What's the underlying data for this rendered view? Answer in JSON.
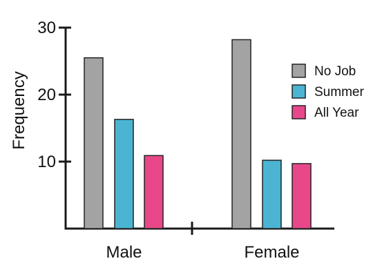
{
  "chart_data": {
    "type": "bar",
    "categories": [
      "Male",
      "Female"
    ],
    "series": [
      {
        "name": "No Job",
        "values": [
          25.5,
          28.2
        ],
        "color": "#a3a3a3"
      },
      {
        "name": "Summer",
        "values": [
          16.3,
          10.2
        ],
        "color": "#4bb4d2"
      },
      {
        "name": "All Year",
        "values": [
          10.9,
          9.7
        ],
        "color": "#e8488a"
      }
    ],
    "xlabel": "",
    "ylabel": "Frequency",
    "ylim": [
      0,
      30
    ],
    "yticks": [
      10,
      20,
      30
    ],
    "ytick_labels": [
      "10",
      "20",
      "30"
    ],
    "legend_position": "right",
    "grid": false
  }
}
